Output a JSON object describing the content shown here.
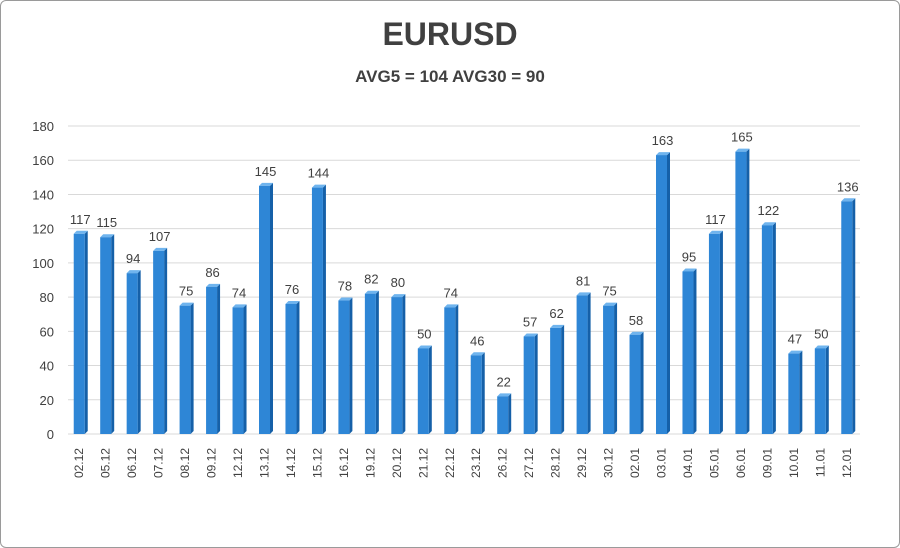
{
  "chart_data": {
    "type": "bar",
    "title": "EURUSD",
    "subtitle": "AVG5 = 104 AVG30 = 90",
    "categories": [
      "02.12",
      "05.12",
      "06.12",
      "07.12",
      "08.12",
      "09.12",
      "12.12",
      "13.12",
      "14.12",
      "15.12",
      "16.12",
      "19.12",
      "20.12",
      "21.12",
      "22.12",
      "23.12",
      "26.12",
      "27.12",
      "28.12",
      "29.12",
      "30.12",
      "02.01",
      "03.01",
      "04.01",
      "05.01",
      "06.01",
      "09.01",
      "10.01",
      "11.01",
      "12.01"
    ],
    "values": [
      117,
      115,
      94,
      107,
      75,
      86,
      74,
      145,
      76,
      144,
      78,
      82,
      80,
      50,
      74,
      46,
      22,
      57,
      62,
      81,
      75,
      58,
      163,
      95,
      117,
      165,
      122,
      47,
      50,
      136
    ],
    "ylim": [
      0,
      180
    ],
    "yticks": [
      0,
      20,
      40,
      60,
      80,
      100,
      120,
      140,
      160,
      180
    ],
    "grid": true,
    "legend": "none",
    "colors": {
      "bar_front": "#2e86d6",
      "bar_side": "#1560a8",
      "bar_top": "#6fb4ee",
      "grid": "#d9d9d9",
      "text": "#404040"
    }
  }
}
